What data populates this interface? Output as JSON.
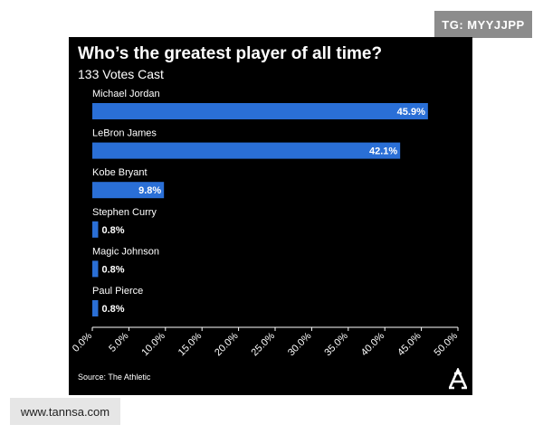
{
  "watermark": {
    "tg": "TG: MYYJJPP",
    "site": "www.tannsa.com"
  },
  "colors": {
    "panel_bg": "#000000",
    "bar": "#2a6fd6",
    "text": "#ffffff",
    "axis": "#ffffff"
  },
  "chart_data": {
    "type": "bar",
    "orientation": "horizontal",
    "title": "Who’s the greatest player of all time?",
    "subtitle": "133 Votes Cast",
    "source": "Source: The Athletic",
    "categories": [
      "Michael Jordan",
      "LeBron James",
      "Kobe Bryant",
      "Stephen Curry",
      "Magic Johnson",
      "Paul Pierce"
    ],
    "values": [
      45.9,
      42.1,
      9.8,
      0.8,
      0.8,
      0.8
    ],
    "value_labels": [
      "45.9%",
      "42.1%",
      "9.8%",
      "0.8%",
      "0.8%",
      "0.8%"
    ],
    "xlim": [
      0,
      50
    ],
    "xticks": [
      "0.0%",
      "5.0%",
      "10.0%",
      "15.0%",
      "20.0%",
      "25.0%",
      "30.0%",
      "35.0%",
      "40.0%",
      "45.0%",
      "50.0%"
    ],
    "xlabel": "",
    "ylabel": "",
    "grid": false,
    "legend": "none"
  }
}
